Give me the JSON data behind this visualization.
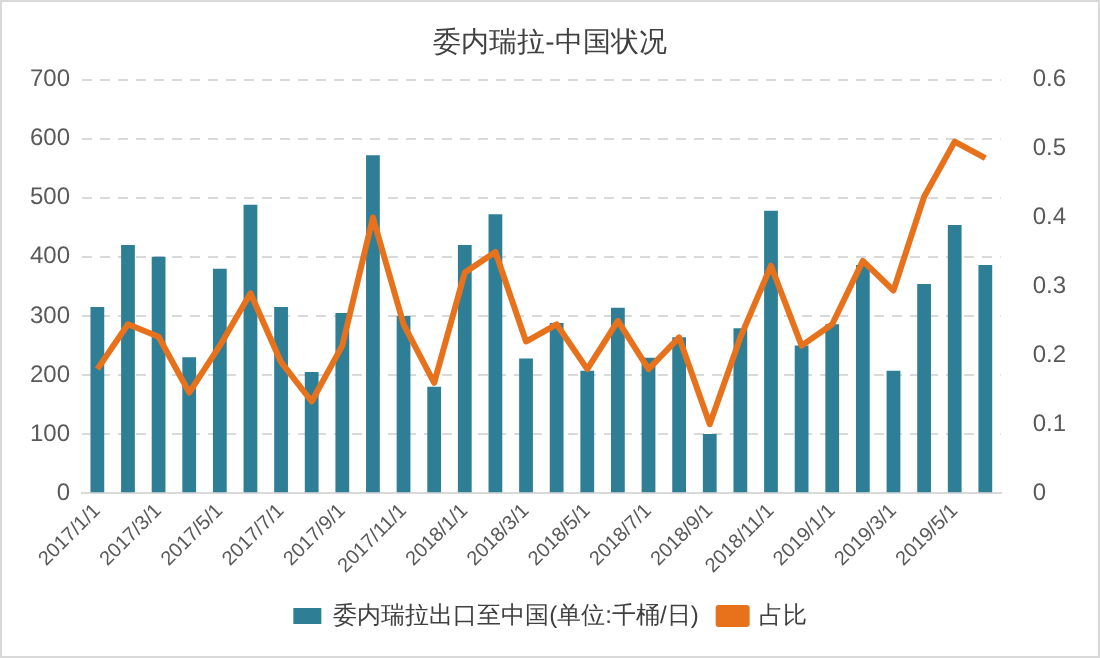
{
  "chart_data": {
    "type": "bar",
    "title": "委内瑞拉-中国状况",
    "categories": [
      "2017/1/1",
      null,
      "2017/3/1",
      null,
      "2017/5/1",
      null,
      "2017/7/1",
      null,
      "2017/9/1",
      null,
      "2017/11/1",
      null,
      "2018/1/1",
      null,
      "2018/3/1",
      null,
      "2018/5/1",
      null,
      "2018/7/1",
      null,
      "2018/9/1",
      null,
      "2018/11/1",
      null,
      "2019/1/1",
      null,
      "2019/3/1",
      null,
      "2019/5/1",
      null
    ],
    "series": [
      {
        "name": "委内瑞拉出口至中国(单位:千桶/日)",
        "color": "#2e7f96",
        "values": [
          315,
          420,
          400,
          230,
          380,
          488,
          315,
          205,
          305,
          572,
          300,
          180,
          420,
          472,
          228,
          288,
          207,
          314,
          229,
          264,
          100,
          279,
          478,
          250,
          286,
          386,
          207,
          354,
          454,
          386
        ]
      },
      {
        "name": "占比",
        "type": "line",
        "axis": "y2",
        "color": "#e8711c",
        "values": [
          0.18,
          0.245,
          0.227,
          0.146,
          0.214,
          0.29,
          0.19,
          0.133,
          0.214,
          0.4,
          0.245,
          0.16,
          0.32,
          0.35,
          0.22,
          0.245,
          0.18,
          0.25,
          0.18,
          0.226,
          0.1,
          0.226,
          0.33,
          0.214,
          0.245,
          0.337,
          0.294,
          0.43,
          0.51,
          0.486
        ]
      }
    ],
    "ylim": [
      0,
      700
    ],
    "yticks": [
      0,
      100,
      200,
      300,
      400,
      500,
      600,
      700
    ],
    "y2lim": [
      0,
      0.6
    ],
    "y2ticks": [
      0,
      0.1,
      0.2,
      0.3,
      0.4,
      0.5,
      0.6
    ],
    "grid": "y",
    "legend": "bottom",
    "marker": "none",
    "line_style": "solid"
  }
}
